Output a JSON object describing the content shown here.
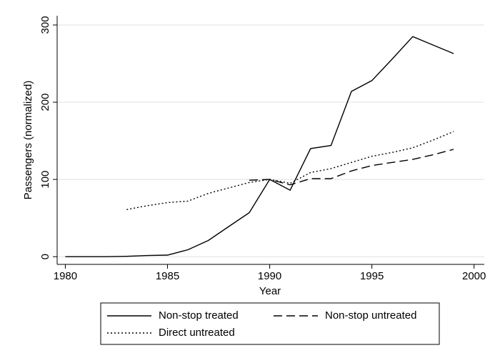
{
  "chart_data": {
    "type": "line",
    "x_label": "Year",
    "y_label": "Passengers (normalized)",
    "x": [
      1980,
      1981,
      1982,
      1983,
      1984,
      1985,
      1986,
      1987,
      1988,
      1989,
      1990,
      1991,
      1992,
      1993,
      1994,
      1995,
      1996,
      1997,
      1998,
      1999
    ],
    "series": [
      {
        "name": "Non-stop treated",
        "color": "#000000",
        "style": "solid",
        "values": [
          0,
          0,
          0,
          0.5,
          1.5,
          2,
          9,
          21,
          39,
          57,
          100,
          86,
          140,
          144,
          214,
          228,
          256,
          285,
          274,
          263
        ]
      },
      {
        "name": "Non-stop untreated",
        "color": "#000000",
        "style": "dashed",
        "values": [
          null,
          null,
          null,
          null,
          null,
          null,
          null,
          null,
          null,
          99,
          100,
          93,
          101,
          101,
          111,
          118,
          122,
          126,
          132,
          139
        ]
      },
      {
        "name": "Direct untreated",
        "color": "#000000",
        "style": "dotted",
        "values": [
          null,
          null,
          null,
          61,
          66,
          70,
          72,
          82,
          89,
          96,
          100,
          95,
          109,
          114,
          122,
          130,
          135,
          141,
          151,
          162
        ]
      }
    ],
    "xlim": [
      1979.6,
      2000.5
    ],
    "xticks": [
      1980,
      1985,
      1990,
      1995,
      2000
    ],
    "ylim": [
      -10,
      312
    ],
    "yticks": [
      0,
      100,
      200,
      300
    ],
    "grid": true
  }
}
